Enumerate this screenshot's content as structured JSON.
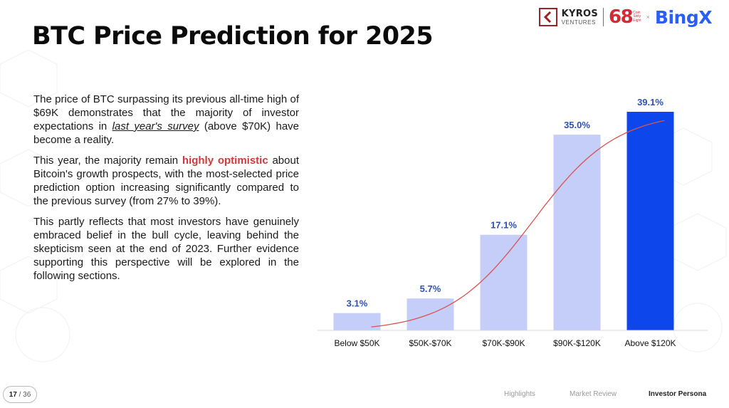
{
  "title": "BTC Price Prediction for 2025",
  "logos": {
    "kyros_name": "KYROS",
    "kyros_sub": "VENTURES",
    "coin68_number": "68",
    "coin68_words": [
      "Coin",
      "Sixty",
      "Eight"
    ],
    "separator": "×",
    "bingx": "BingX"
  },
  "paragraphs": {
    "p1_part1": "The price of BTC surpassing its previous all-time high of $69K demonstrates that the majority of investor expectations in ",
    "p1_link": "last year's survey",
    "p1_part2": " (above $70K) have become a reality.",
    "p2_part1": "This year, the majority remain ",
    "p2_highlight": "highly optimistic",
    "p2_part2": " about Bitcoin's growth prospects, with the most-selected price prediction option increasing significantly compared to the previous survey (from 27% to 39%).",
    "p3": "This partly reflects that most investors have genuinely embraced belief in the bull cycle, leaving behind the skepticism seen at the end of 2023. Further evidence supporting this perspective will be explored in the following sections."
  },
  "chart_data": {
    "type": "bar",
    "categories": [
      "Below $50K",
      "$50K-$70K",
      "$70K-$90K",
      "$90K-$120K",
      "Above $120K"
    ],
    "values": [
      3.1,
      5.7,
      17.1,
      35.0,
      39.1
    ],
    "data_labels": [
      "3.1%",
      "5.7%",
      "17.1%",
      "35.0%",
      "39.1%"
    ],
    "ylim": [
      0,
      39.1
    ],
    "highlight_index": 4,
    "colors": {
      "bar": "#c5cdf9",
      "highlight": "#0d47ec",
      "trend": "#d9534f",
      "label": "#2c52b8"
    },
    "trend_line": true,
    "grid": false
  },
  "footer": {
    "page_current": "17",
    "page_total": "/ 36",
    "nav": [
      "Highlights",
      "Market Review",
      "Investor Persona"
    ],
    "active_index": 2
  }
}
